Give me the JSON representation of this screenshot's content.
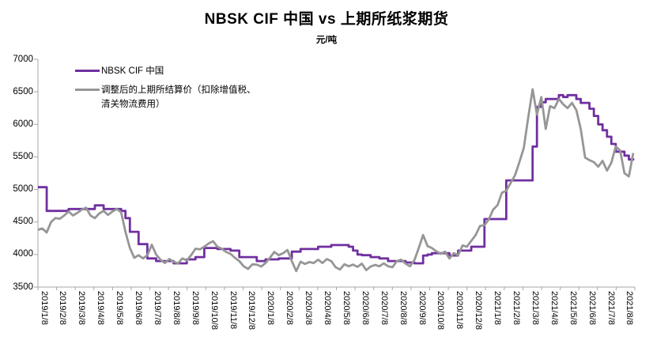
{
  "chart_data": {
    "type": "line",
    "title": "NBSK CIF 中国 vs 上期所纸浆期货",
    "unit_label": "元/吨",
    "grid": false,
    "background": "#FFFFFF",
    "axis_color": "#A6A6A6",
    "label_color": "#000000",
    "legend_position": "top-left",
    "ylim": [
      3500,
      7000
    ],
    "y_ticks": [
      7000,
      6500,
      6000,
      5500,
      5000,
      4500,
      4000,
      3500
    ],
    "x_tick_labels": [
      "2019/1/8",
      "2019/2/8",
      "2019/3/8",
      "2019/4/8",
      "2019/5/8",
      "2019/6/8",
      "2019/7/8",
      "2019/8/8",
      "2019/9/8",
      "2019/10/8",
      "2019/11/8",
      "2019/12/8",
      "2020/1/8",
      "2020/2/8",
      "2020/3/8",
      "2020/4/8",
      "2020/5/8",
      "2020/6/8",
      "2020/7/8",
      "2020/8/8",
      "2020/9/8",
      "2020/10/8",
      "2020/11/8",
      "2020/12/8",
      "2021/1/8",
      "2021/2/8",
      "2021/3/8",
      "2021/4/8",
      "2021/5/8",
      "2021/6/8",
      "2021/7/8",
      "2021/8/8"
    ],
    "x_range_note": "weekly samples from 2019/1/8 to 2021/8/8",
    "series": [
      {
        "name": "NBSK CIF 中国",
        "color": "#7030A0",
        "style": "step",
        "values": [
          5035,
          5035,
          4670,
          4670,
          4670,
          4670,
          4670,
          4700,
          4700,
          4700,
          4700,
          4700,
          4700,
          4755,
          4755,
          4700,
          4700,
          4700,
          4700,
          4670,
          4560,
          4350,
          4350,
          4160,
          4160,
          3940,
          3940,
          3900,
          3900,
          3900,
          3900,
          3865,
          3865,
          3865,
          3925,
          3925,
          3960,
          3960,
          4100,
          4100,
          4100,
          4085,
          4085,
          4085,
          4060,
          4060,
          3960,
          3960,
          3960,
          3960,
          3900,
          3900,
          3925,
          3925,
          3925,
          3940,
          3940,
          3940,
          4045,
          4045,
          4085,
          4085,
          4085,
          4085,
          4120,
          4120,
          4120,
          4145,
          4145,
          4145,
          4145,
          4120,
          4060,
          4000,
          3990,
          3990,
          3960,
          3960,
          3940,
          3940,
          3900,
          3900,
          3900,
          3900,
          3877,
          3877,
          3865,
          3865,
          3985,
          4000,
          4020,
          4020,
          4020,
          4020,
          3985,
          3985,
          4060,
          4060,
          4060,
          4120,
          4120,
          4120,
          4545,
          4545,
          4545,
          4545,
          4545,
          5140,
          5140,
          5140,
          5140,
          5140,
          5140,
          5660,
          6270,
          6340,
          6390,
          6390,
          6390,
          6450,
          6420,
          6450,
          6450,
          6390,
          6330,
          6330,
          6240,
          6130,
          6000,
          5910,
          5810,
          5700,
          5580,
          5580,
          5520,
          5460,
          5480
        ]
      },
      {
        "name": "调整后的上期所结算价（扣除增值税、清关物流费用）",
        "color": "#969696",
        "style": "line",
        "values": [
          4380,
          4400,
          4340,
          4500,
          4560,
          4550,
          4600,
          4660,
          4600,
          4640,
          4690,
          4720,
          4600,
          4560,
          4630,
          4670,
          4610,
          4660,
          4700,
          4650,
          4350,
          4100,
          3950,
          3990,
          3940,
          3990,
          4150,
          4000,
          3920,
          3870,
          3930,
          3890,
          3865,
          3940,
          3910,
          3990,
          4090,
          4080,
          4120,
          4170,
          4205,
          4120,
          4090,
          4040,
          4010,
          3950,
          3900,
          3820,
          3780,
          3850,
          3845,
          3816,
          3870,
          3950,
          4040,
          3990,
          4020,
          4070,
          3900,
          3745,
          3890,
          3855,
          3885,
          3870,
          3920,
          3870,
          3930,
          3900,
          3805,
          3770,
          3850,
          3820,
          3845,
          3810,
          3860,
          3760,
          3815,
          3840,
          3820,
          3865,
          3820,
          3805,
          3900,
          3920,
          3860,
          3820,
          3915,
          4100,
          4300,
          4130,
          4100,
          4050,
          4010,
          4045,
          3940,
          4020,
          3990,
          4140,
          4120,
          4210,
          4300,
          4440,
          4450,
          4540,
          4690,
          4760,
          4950,
          4980,
          5100,
          5220,
          5420,
          5640,
          6100,
          6540,
          6150,
          6420,
          5930,
          6280,
          6250,
          6390,
          6310,
          6250,
          6330,
          6220,
          5930,
          5490,
          5450,
          5420,
          5350,
          5440,
          5290,
          5410,
          5660,
          5600,
          5250,
          5200,
          5560
        ]
      }
    ]
  }
}
